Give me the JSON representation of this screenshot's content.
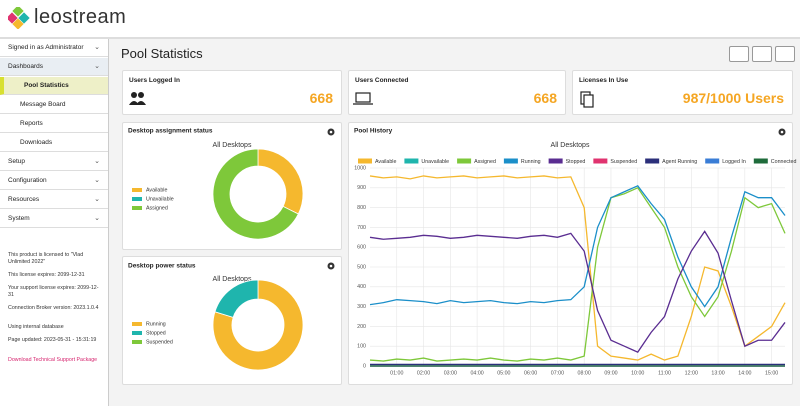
{
  "header": {
    "logo": "leostream"
  },
  "sidebar": {
    "signed_in": "Signed in as Administrator",
    "menu": [
      "Dashboards",
      "Setup",
      "Configuration",
      "Resources",
      "System"
    ],
    "submenu": [
      "Pool Statistics",
      "Message Board",
      "Reports",
      "Downloads"
    ],
    "license": [
      "This product is licensed to \"Vlad Unlimited 2022\"",
      "This license expires: 2099-12-31",
      "Your support license expires: 2099-12-31",
      "Connection Broker version: 2023.1.0.4",
      "Using internal database",
      "Page updated: 2023-05-31 - 15:31:19"
    ],
    "support_link": "Download Technical Support Package"
  },
  "page_title": "Pool Statistics",
  "stats": [
    {
      "label": "Users Logged In",
      "value": 668
    },
    {
      "label": "Users Connected",
      "value": 668
    },
    {
      "label": "Licenses In Use",
      "value": "987/1000 Users"
    }
  ],
  "chart_data": [
    {
      "type": "pie",
      "title": "Desktop assignment status",
      "subtitle": "All Desktops",
      "categories": [
        "Available",
        "Unavailable",
        "Assigned"
      ],
      "values": [
        319,
        0,
        668
      ],
      "colors": [
        "#f5b82e",
        "#1fb5ad",
        "#7ec83a"
      ]
    },
    {
      "type": "pie",
      "title": "Desktop power status",
      "subtitle": "All Desktops",
      "categories": [
        "Running",
        "Stopped",
        "Suspended"
      ],
      "values": [
        787,
        200,
        0
      ],
      "colors": [
        "#f5b82e",
        "#1fb5ad",
        "#7ec83a"
      ]
    },
    {
      "type": "line",
      "title": "Pool History",
      "subtitle": "All Desktops",
      "categories": [
        null,
        null,
        "01:00",
        null,
        "02:00",
        null,
        "03:00",
        null,
        "04:00",
        null,
        "05:00",
        null,
        "06:00",
        null,
        "07:00",
        null,
        "08:00",
        null,
        "09:00",
        null,
        "10:00",
        null,
        "11:00",
        null,
        "12:00",
        null,
        "13:00",
        null,
        "14:00",
        null,
        "15:00",
        null
      ],
      "ylim": [
        0,
        1000
      ],
      "yticks": [
        0,
        100,
        200,
        300,
        400,
        500,
        600,
        700,
        800,
        900,
        1000
      ],
      "grid": true,
      "series": [
        {
          "name": "Available",
          "color": "#f5b82e",
          "values": [
            960,
            950,
            955,
            945,
            960,
            950,
            955,
            960,
            950,
            955,
            960,
            950,
            955,
            960,
            950,
            955,
            800,
            100,
            50,
            40,
            30,
            60,
            30,
            50,
            250,
            500,
            480,
            300,
            100,
            150,
            200,
            320
          ]
        },
        {
          "name": "Unavailable",
          "color": "#1fb5ad",
          "values": [
            0,
            0,
            0,
            0,
            0,
            0,
            0,
            0,
            0,
            0,
            0,
            0,
            0,
            0,
            0,
            0,
            0,
            0,
            0,
            0,
            0,
            0,
            0,
            0,
            0,
            0,
            0,
            0,
            0,
            0,
            0,
            0
          ]
        },
        {
          "name": "Assigned",
          "color": "#7ec83a",
          "values": [
            30,
            25,
            35,
            30,
            40,
            25,
            30,
            35,
            30,
            40,
            30,
            25,
            35,
            30,
            40,
            30,
            50,
            600,
            850,
            870,
            900,
            800,
            700,
            500,
            350,
            250,
            350,
            580,
            850,
            800,
            820,
            670
          ]
        },
        {
          "name": "Running",
          "color": "#1b8fc9",
          "values": [
            310,
            320,
            335,
            330,
            325,
            315,
            330,
            320,
            325,
            330,
            320,
            315,
            325,
            320,
            330,
            335,
            400,
            700,
            850,
            880,
            910,
            820,
            740,
            550,
            400,
            300,
            400,
            650,
            880,
            850,
            850,
            760
          ]
        },
        {
          "name": "Stopped",
          "color": "#5a2d91",
          "values": [
            650,
            640,
            645,
            650,
            660,
            655,
            645,
            650,
            660,
            655,
            650,
            645,
            655,
            660,
            650,
            670,
            580,
            280,
            130,
            100,
            70,
            170,
            250,
            440,
            580,
            680,
            570,
            330,
            100,
            130,
            130,
            220
          ]
        },
        {
          "name": "Suspended",
          "color": "#e0336f",
          "values": [
            0,
            0,
            0,
            0,
            0,
            0,
            0,
            0,
            0,
            0,
            0,
            0,
            0,
            0,
            0,
            0,
            0,
            0,
            0,
            0,
            0,
            0,
            0,
            0,
            0,
            0,
            0,
            0,
            0,
            0,
            0,
            0
          ]
        },
        {
          "name": "Agent Running",
          "color": "#2b2f7a",
          "values": [
            8,
            8,
            8,
            8,
            8,
            8,
            8,
            8,
            8,
            8,
            8,
            8,
            8,
            8,
            8,
            8,
            8,
            8,
            8,
            8,
            8,
            8,
            8,
            8,
            8,
            8,
            8,
            8,
            8,
            8,
            8,
            8
          ]
        },
        {
          "name": "Logged In",
          "color": "#3a7dd6",
          "values": [
            0,
            0,
            0,
            0,
            0,
            0,
            0,
            0,
            0,
            0,
            0,
            0,
            0,
            0,
            0,
            0,
            0,
            0,
            0,
            0,
            0,
            0,
            0,
            0,
            0,
            0,
            0,
            0,
            0,
            0,
            0,
            0
          ]
        },
        {
          "name": "Connected",
          "color": "#1e6b3a",
          "values": [
            0,
            0,
            0,
            0,
            0,
            0,
            0,
            0,
            0,
            0,
            0,
            0,
            0,
            0,
            0,
            0,
            0,
            0,
            0,
            0,
            0,
            0,
            0,
            0,
            0,
            0,
            0,
            0,
            0,
            0,
            0,
            0
          ]
        }
      ]
    }
  ]
}
